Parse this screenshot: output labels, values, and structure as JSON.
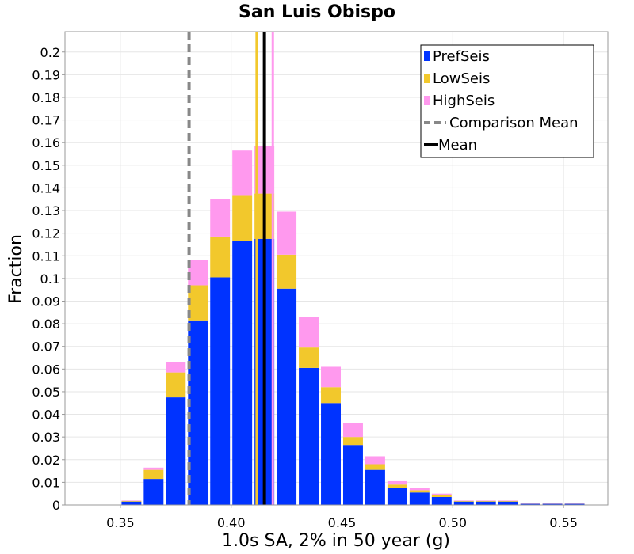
{
  "chart_data": {
    "type": "bar",
    "stacked": true,
    "title": "San Luis Obispo",
    "xlabel": "1.0s SA, 2% in 50 year (g)",
    "ylabel": "Fraction",
    "xlim": [
      0.325,
      0.57
    ],
    "ylim": [
      0,
      0.209
    ],
    "xticks": [
      "0.35",
      "0.40",
      "0.45",
      "0.50",
      "0.55"
    ],
    "xtick_values": [
      0.35,
      0.4,
      0.45,
      0.5,
      0.55
    ],
    "yticks": [
      "0",
      "0.01",
      "0.02",
      "0.03",
      "0.04",
      "0.05",
      "0.06",
      "0.07",
      "0.08",
      "0.09",
      "0.1",
      "0.11",
      "0.12",
      "0.13",
      "0.14",
      "0.15",
      "0.16",
      "0.17",
      "0.18",
      "0.19",
      "0.2"
    ],
    "ytick_values": [
      0,
      0.01,
      0.02,
      0.03,
      0.04,
      0.05,
      0.06,
      0.07,
      0.08,
      0.09,
      0.1,
      0.11,
      0.12,
      0.13,
      0.14,
      0.15,
      0.16,
      0.17,
      0.18,
      0.19,
      0.2
    ],
    "bin_width": 0.01,
    "bin_centers": [
      0.355,
      0.365,
      0.375,
      0.385,
      0.395,
      0.405,
      0.415,
      0.425,
      0.435,
      0.445,
      0.455,
      0.465,
      0.475,
      0.485,
      0.495,
      0.505,
      0.515,
      0.525,
      0.535,
      0.545,
      0.555
    ],
    "series": [
      {
        "name": "PrefSeis",
        "color": "#0033ff",
        "values": [
          0.0015,
          0.0115,
          0.0475,
          0.0815,
          0.1005,
          0.1165,
          0.1175,
          0.0955,
          0.0605,
          0.045,
          0.0265,
          0.0155,
          0.0075,
          0.0055,
          0.0035,
          0.0015,
          0.0015,
          0.0015,
          0.0005,
          0.0005,
          0.0005
        ]
      },
      {
        "name": "LowSeis",
        "color": "#f2c82c",
        "values": [
          0.0003,
          0.004,
          0.011,
          0.0155,
          0.018,
          0.02,
          0.02,
          0.015,
          0.009,
          0.007,
          0.0035,
          0.0025,
          0.0015,
          0.001,
          0.001,
          0.0003,
          0.0003,
          0.0003,
          0.0001,
          0.0001,
          0.0001
        ]
      },
      {
        "name": "HighSeis",
        "color": "#ff99ee",
        "values": [
          0.0002,
          0.001,
          0.0045,
          0.011,
          0.0165,
          0.02,
          0.021,
          0.019,
          0.0135,
          0.009,
          0.006,
          0.0035,
          0.0015,
          0.001,
          0.0005,
          0.0002,
          0.0002,
          0.0002,
          0.0001,
          0.0001,
          0.0001
        ]
      }
    ],
    "reference_lines": [
      {
        "name": "Comparison Mean",
        "x": 0.381,
        "style": "dashed",
        "color": "#888888"
      },
      {
        "name": "Mean",
        "x": 0.415,
        "style": "solid",
        "color": "#000000"
      }
    ],
    "mean_bands": [
      {
        "name": "LowSeis",
        "x": 0.4115,
        "color": "#f2c82c"
      },
      {
        "name": "HighSeis",
        "x": 0.4188,
        "color": "#ff99ee"
      }
    ],
    "legend": {
      "position": "top-right",
      "entries": [
        {
          "label": "PrefSeis",
          "kind": "box",
          "color": "#0033ff"
        },
        {
          "label": "LowSeis",
          "kind": "box",
          "color": "#f2c82c"
        },
        {
          "label": "HighSeis",
          "kind": "box",
          "color": "#ff99ee"
        },
        {
          "label": "Comparison Mean",
          "kind": "dash",
          "color": "#888888"
        },
        {
          "label": "Mean",
          "kind": "line",
          "color": "#000000"
        }
      ]
    },
    "grid": true
  }
}
